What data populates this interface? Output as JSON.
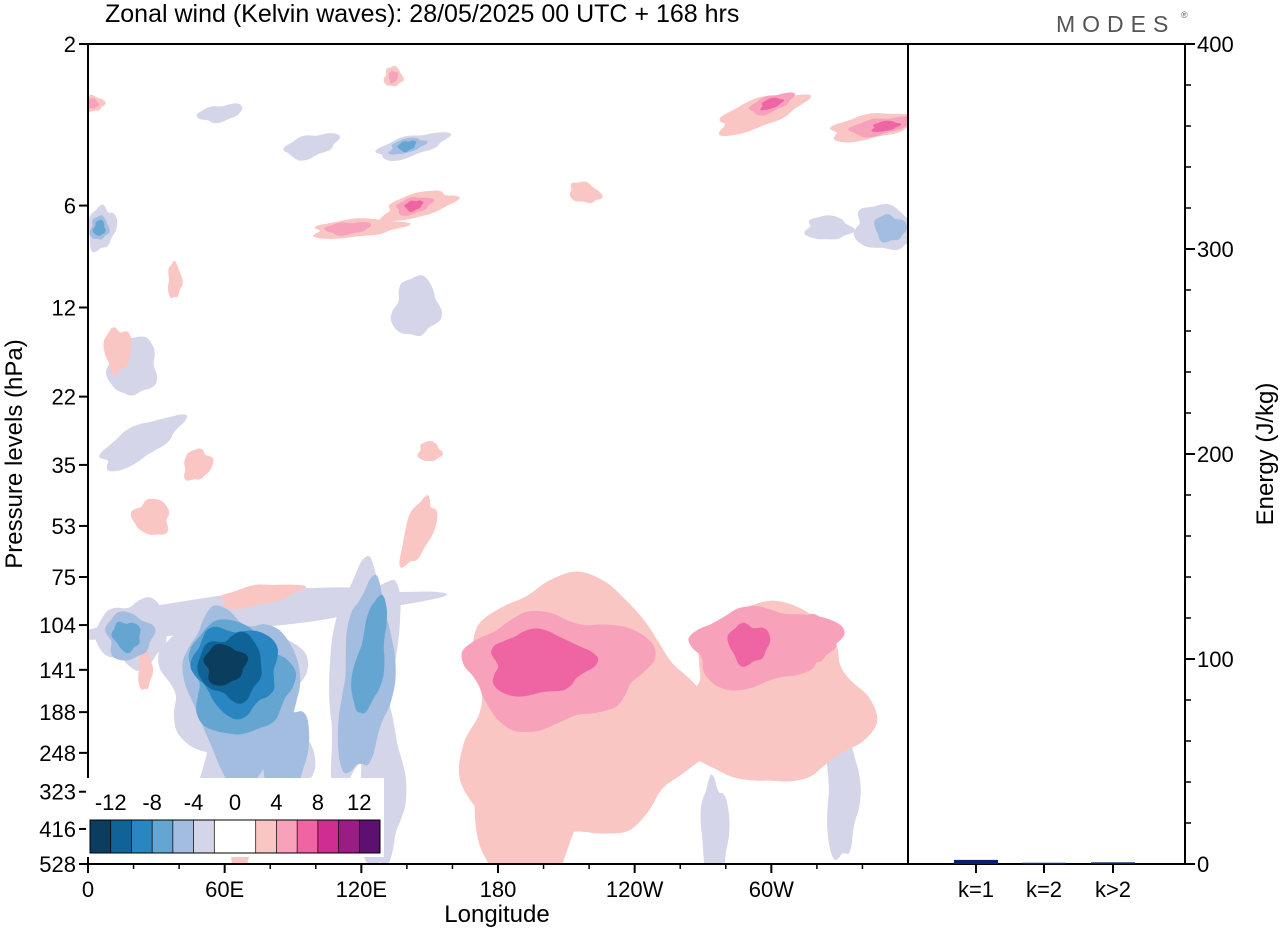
{
  "chart_data": [
    {
      "type": "heatmap",
      "title": "Zonal wind (Kelvin waves):  28/05/2025  00 UTC  + 168 hrs",
      "xlabel": "Longitude",
      "ylabel": "Pressure levels (hPa)",
      "x_ticks": [
        "0",
        "60E",
        "120E",
        "180",
        "120W",
        "60W"
      ],
      "y_ticks": [
        "2",
        "6",
        "12",
        "22",
        "35",
        "53",
        "75",
        "104",
        "141",
        "188",
        "248",
        "323",
        "416",
        "528"
      ],
      "y_scale": "log",
      "colorbar": {
        "tick_labels": [
          "-12",
          "-8",
          "-4",
          "0",
          "4",
          "8",
          "12"
        ],
        "colors": [
          "#0b3d5e",
          "#0f6396",
          "#2a86c0",
          "#64a6d1",
          "#a2bddf",
          "#d4d5e8",
          "#ffffff",
          "#ffffff",
          "#f9c6c3",
          "#f7a1ba",
          "#ef65a3",
          "#cf2d8f",
          "#9c1c86",
          "#5d1070"
        ]
      },
      "anomalies": [
        {
          "sign": "negative",
          "peak": -14,
          "region": "40E-100E, 104-188 hPa"
        },
        {
          "sign": "negative",
          "peak": -9,
          "region": "105E-135E, 85-170 hPa"
        },
        {
          "sign": "negative",
          "peak": -7,
          "region": "10E-30E, 95-130 hPa"
        },
        {
          "sign": "positive",
          "peak": 10,
          "region": "160E-120W, 104-290 hPa"
        },
        {
          "sign": "positive",
          "peak": 9,
          "region": "75W-30W, 104-170 hPa"
        },
        {
          "sign": "positive",
          "peak": 8,
          "region": "upper stratosphere, 2-8 hPa"
        }
      ]
    },
    {
      "type": "bar",
      "categories": [
        "k=1",
        "k=2",
        "k>2"
      ],
      "values": [
        2,
        0.6,
        0.8
      ],
      "ylabel": "Energy (J/kg)",
      "ylim": [
        0,
        400
      ],
      "y_ticks": [
        "0",
        "100",
        "200",
        "300",
        "400"
      ],
      "bar_color": "#0a1f6e"
    }
  ],
  "logo": "MODES",
  "logo_mark": "®"
}
